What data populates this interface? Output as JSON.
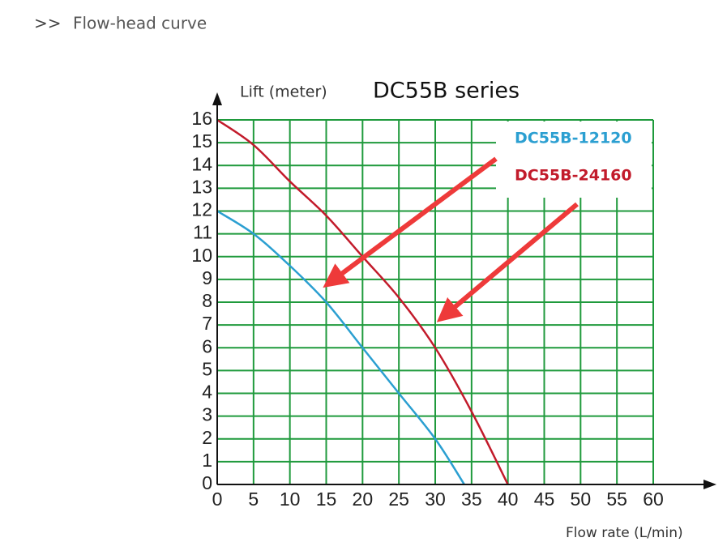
{
  "header": {
    "icon": ">>",
    "title": "Flow-head curve"
  },
  "chart_data": {
    "type": "line",
    "title": "DC55B series",
    "y_label": "Lift (meter)",
    "x_label": "Flow rate (L/min)",
    "xlim": [
      0,
      60
    ],
    "xticks": [
      0,
      5,
      10,
      15,
      20,
      25,
      30,
      35,
      40,
      45,
      50,
      55,
      60
    ],
    "ylim": [
      0,
      16
    ],
    "yticks": [
      0,
      1,
      2,
      3,
      4,
      5,
      6,
      7,
      8,
      9,
      10,
      11,
      12,
      13,
      14,
      15,
      16
    ],
    "grid": true,
    "grid_color": "#1f9a3c",
    "legend": "upper right",
    "series": [
      {
        "name": "DC55B-12120",
        "color": "#2b9fd1",
        "x": [
          0,
          5,
          10,
          15,
          20,
          25,
          30,
          34
        ],
        "values": [
          12,
          11,
          9.6,
          8,
          6,
          4,
          2,
          0
        ]
      },
      {
        "name": "DC55B-24160",
        "color": "#c21b2b",
        "x": [
          0,
          5,
          10,
          15,
          20,
          25,
          30,
          35,
          40
        ],
        "values": [
          16,
          14.9,
          13.3,
          11.8,
          10,
          8.2,
          6,
          3.2,
          0
        ]
      }
    ]
  }
}
